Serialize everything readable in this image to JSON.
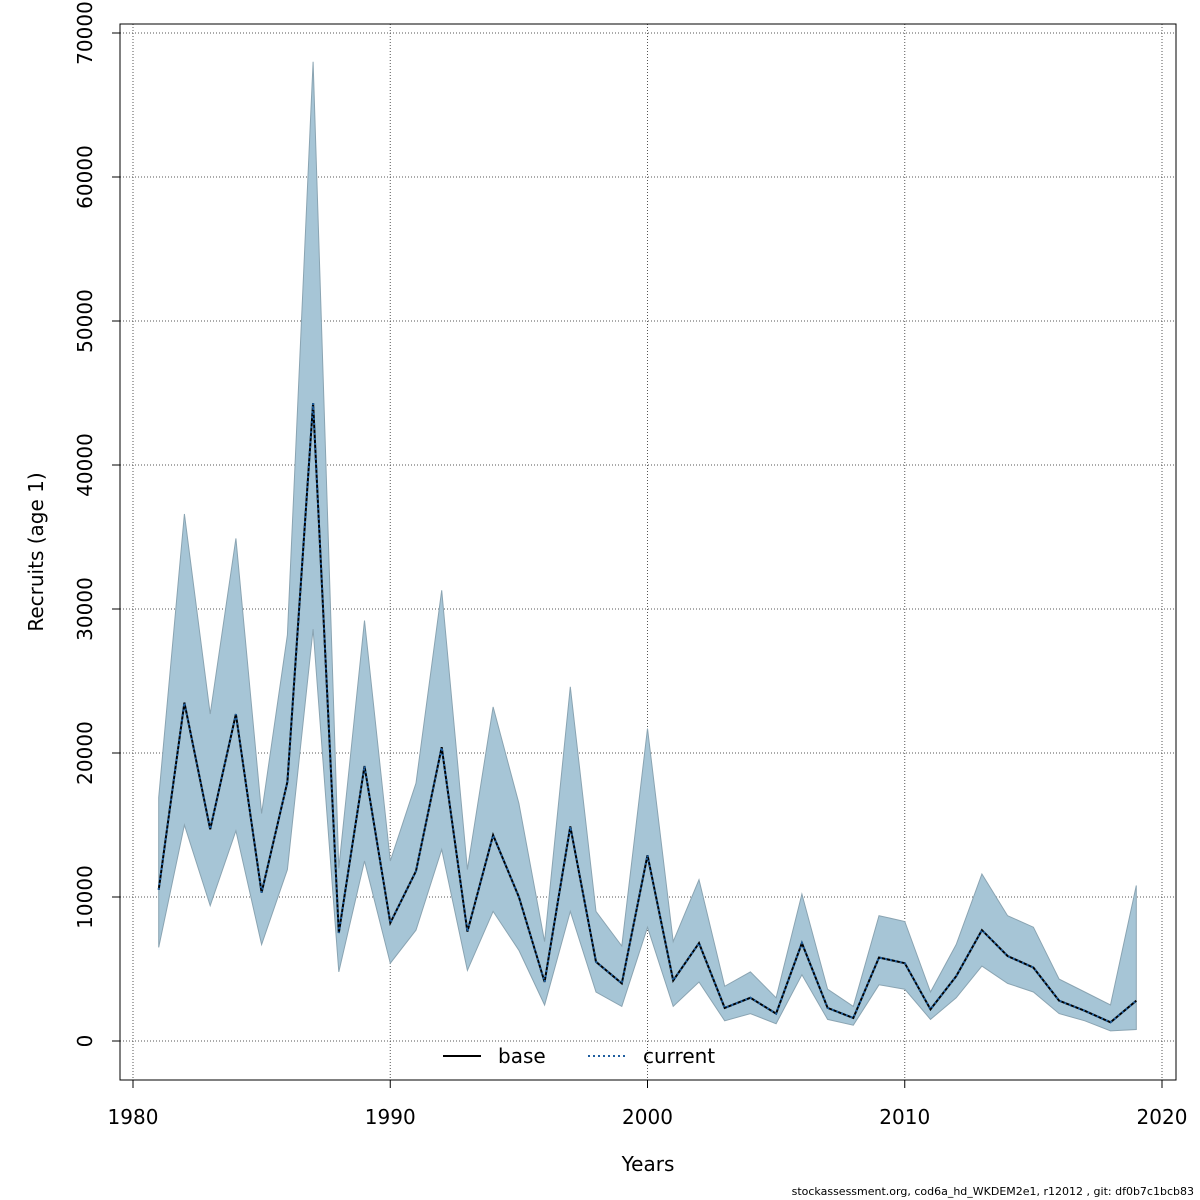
{
  "chart_data": {
    "type": "line",
    "title": "",
    "xlabel": "Years",
    "ylabel": "Recruits (age 1)",
    "xlim": [
      1980,
      2020
    ],
    "ylim": [
      0,
      70000
    ],
    "xticks": [
      1980,
      1990,
      2000,
      2010,
      2020
    ],
    "yticks": [
      0,
      10000,
      20000,
      30000,
      40000,
      50000,
      60000,
      70000
    ],
    "grid": true,
    "legend_position": "bottom-center",
    "x": [
      1981,
      1982,
      1983,
      1984,
      1985,
      1986,
      1987,
      1988,
      1989,
      1990,
      1991,
      1992,
      1993,
      1994,
      1995,
      1996,
      1997,
      1998,
      1999,
      2000,
      2001,
      2002,
      2003,
      2004,
      2005,
      2006,
      2007,
      2008,
      2009,
      2010,
      2011,
      2012,
      2013,
      2014,
      2015,
      2016,
      2017,
      2018,
      2019
    ],
    "series": [
      {
        "name": "base",
        "style": "solid",
        "color": "#000000",
        "values": [
          10500,
          23500,
          14700,
          22700,
          10300,
          18000,
          44300,
          7500,
          19100,
          8200,
          11800,
          20400,
          7600,
          14300,
          10000,
          4100,
          14900,
          5500,
          4000,
          12900,
          4200,
          6800,
          2300,
          3000,
          1900,
          6800,
          2300,
          1600,
          5800,
          5400,
          2200,
          4500,
          7700,
          5900,
          5100,
          2800,
          2100,
          1300,
          2800
        ]
      },
      {
        "name": "current",
        "style": "dotted",
        "color": "#1f5f9f",
        "values": [
          10500,
          23500,
          14700,
          22700,
          10300,
          18000,
          44300,
          7500,
          19100,
          8200,
          11800,
          20400,
          7600,
          14300,
          10000,
          4100,
          14900,
          5500,
          4000,
          12900,
          4200,
          6800,
          2300,
          3000,
          1900,
          6800,
          2300,
          1600,
          5800,
          5400,
          2200,
          4500,
          7700,
          5900,
          5100,
          2800,
          2100,
          1300,
          2800
        ]
      }
    ],
    "band": {
      "color": "#a6c5d6",
      "lower": [
        6500,
        15000,
        9400,
        14600,
        6700,
        11900,
        28600,
        4800,
        12500,
        5400,
        7700,
        13300,
        4900,
        9000,
        6300,
        2500,
        9000,
        3400,
        2400,
        7900,
        2400,
        4100,
        1400,
        1900,
        1200,
        4600,
        1500,
        1100,
        3900,
        3600,
        1500,
        3000,
        5200,
        4000,
        3400,
        1900,
        1400,
        700,
        800
      ],
      "upper": [
        16900,
        36600,
        22700,
        34900,
        15800,
        28200,
        68000,
        12000,
        29200,
        12500,
        17900,
        31300,
        11900,
        23200,
        16500,
        6900,
        24600,
        9000,
        6600,
        21700,
        6900,
        11200,
        3800,
        4800,
        3000,
        10200,
        3600,
        2400,
        8700,
        8300,
        3400,
        6700,
        11600,
        8700,
        7900,
        4300,
        3400,
        2500,
        10800
      ]
    },
    "footer_text": "stockassessment.org, cod6a_hd_WKDEM2e1, r12012 , git: df0b7c1bcb83"
  }
}
